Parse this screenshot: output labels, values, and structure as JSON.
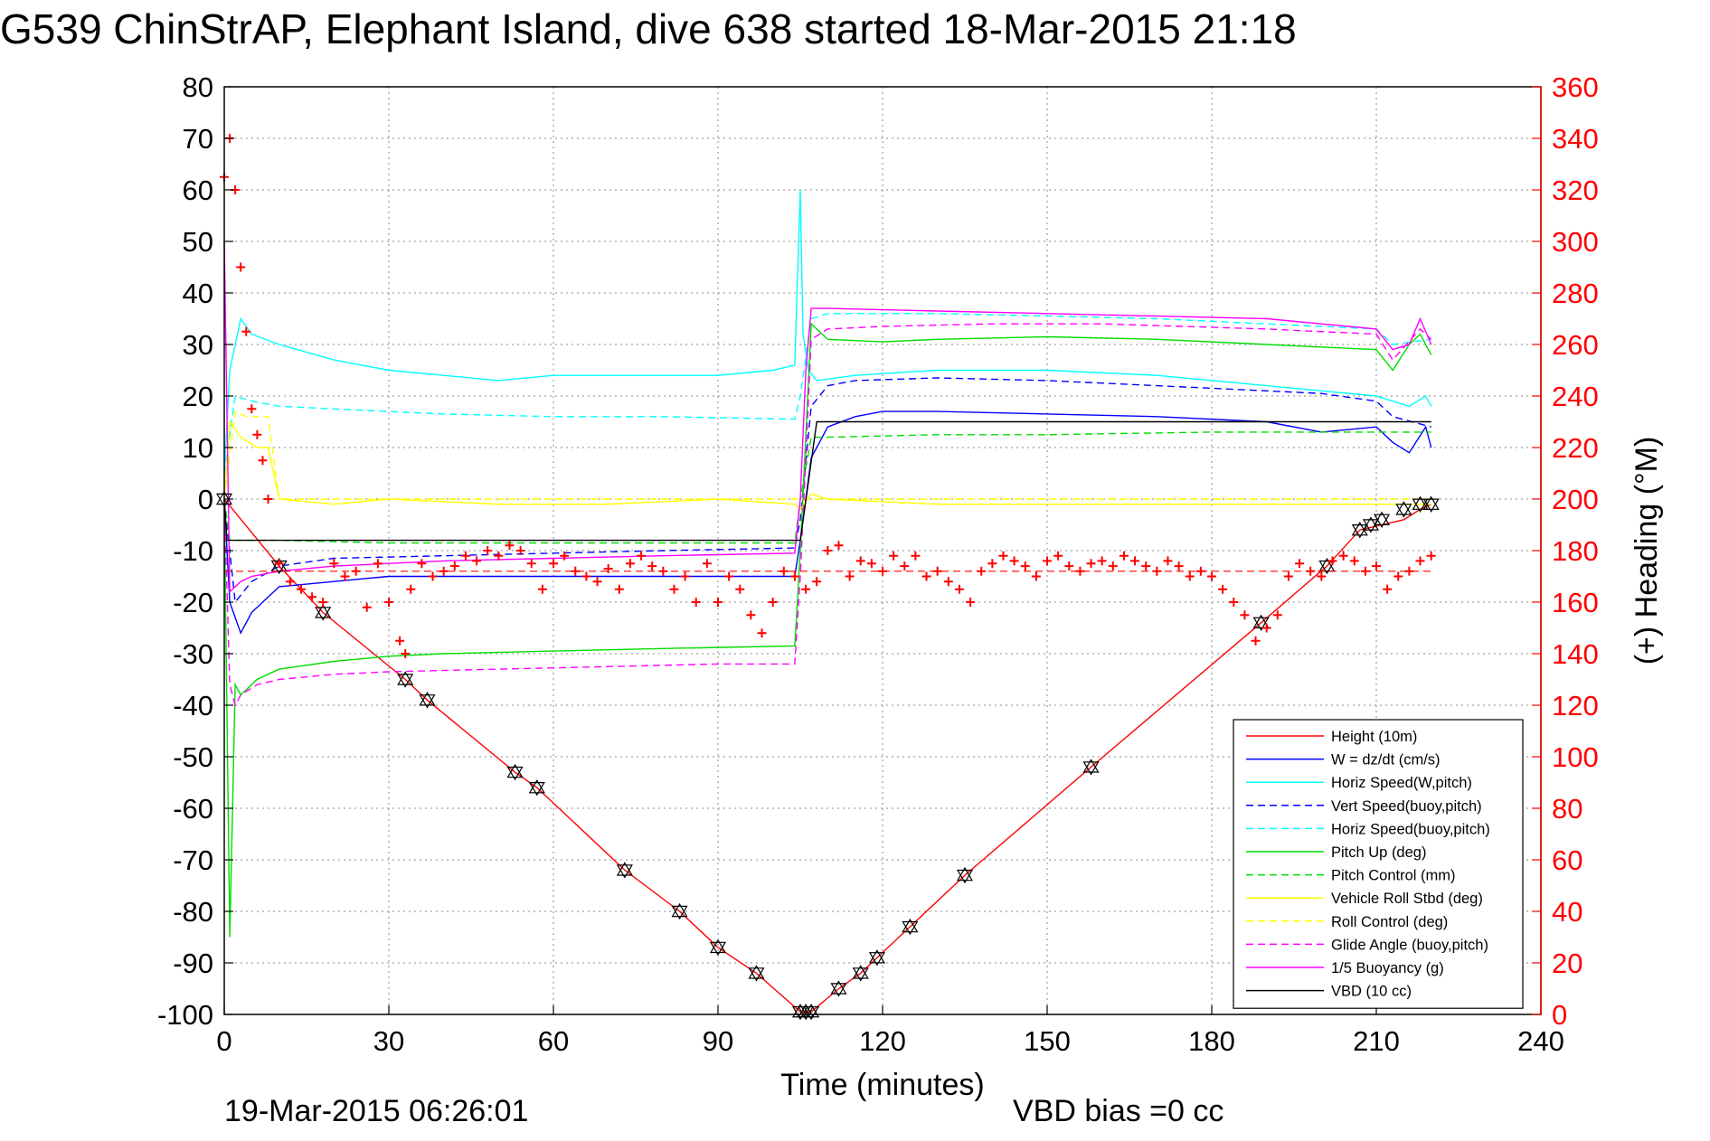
{
  "chart_data": {
    "type": "line",
    "title": "G539 ChinStrAP, Elephant Island, dive 638 started 18-Mar-2015 21:18",
    "xlabel": "Time (minutes)",
    "ylabel_right": "(+) Heading (°M)",
    "xlim": [
      0,
      240
    ],
    "ylim": [
      -100,
      80
    ],
    "ylim_right": [
      0,
      360
    ],
    "xticks": [
      "0",
      "30",
      "60",
      "90",
      "120",
      "150",
      "180",
      "210",
      "240"
    ],
    "yticks": [
      "80",
      "70",
      "60",
      "50",
      "40",
      "30",
      "20",
      "10",
      "0",
      "-10",
      "-20",
      "-30",
      "-40",
      "-50",
      "-60",
      "-70",
      "-80",
      "-90",
      "-100"
    ],
    "yticks_right": [
      "360",
      "340",
      "320",
      "300",
      "280",
      "260",
      "240",
      "220",
      "200",
      "180",
      "160",
      "140",
      "120",
      "100",
      "80",
      "60",
      "40",
      "20",
      "0"
    ],
    "grid": true,
    "legend_position": "bottom-right",
    "footer_left": "19-Mar-2015 06:26:01",
    "footer_right": "VBD bias =0 cc",
    "series": [
      {
        "name": "Height (10m)",
        "color": "#ff0000",
        "dash": "solid",
        "x": [
          0,
          10,
          18,
          33,
          37,
          53,
          57,
          73,
          83,
          90,
          97,
          105,
          107,
          112,
          116,
          119,
          125,
          135,
          158,
          189,
          201,
          207,
          215,
          218,
          220
        ],
        "y": [
          0,
          -13,
          -22,
          -35,
          -39,
          -53,
          -56,
          -72,
          -80,
          -87,
          -92,
          -99.5,
          -99.5,
          -95,
          -92,
          -89,
          -83,
          -73,
          -52,
          -24,
          -13,
          -6,
          -4,
          -2,
          -1
        ]
      },
      {
        "name": "W = dz/dt (cm/s)",
        "color": "#0000ff",
        "dash": "solid",
        "x": [
          0,
          1,
          3,
          5,
          10,
          20,
          30,
          50,
          70,
          90,
          104,
          105,
          107,
          110,
          115,
          120,
          130,
          150,
          170,
          190,
          200,
          210,
          213,
          216,
          219,
          220
        ],
        "y": [
          0,
          -20,
          -26,
          -22,
          -17,
          -16,
          -15,
          -15,
          -15,
          -15,
          -15,
          -8,
          8,
          14,
          16,
          17,
          17,
          16.5,
          16,
          15,
          13,
          14,
          11,
          9,
          14,
          10
        ]
      },
      {
        "name": "Horiz Speed(W,pitch)",
        "color": "#00ffff",
        "dash": "solid",
        "x": [
          0,
          1,
          3,
          5,
          10,
          20,
          30,
          40,
          50,
          60,
          70,
          80,
          90,
          100,
          104,
          105,
          105.5,
          106.5,
          108,
          115,
          130,
          150,
          170,
          190,
          200,
          210,
          213,
          216,
          219,
          220
        ],
        "y": [
          5,
          25,
          35,
          32,
          30,
          27,
          25,
          24,
          23,
          24,
          24,
          24,
          24,
          25,
          26,
          60,
          32,
          25,
          23,
          24,
          25,
          25,
          24,
          22,
          21,
          20,
          19,
          18,
          20,
          18
        ]
      },
      {
        "name": "Vert Speed(buoy,pitch)",
        "color": "#0000ff",
        "dash": "dashed",
        "x": [
          0,
          2,
          5,
          10,
          20,
          40,
          60,
          80,
          104,
          105,
          107,
          110,
          115,
          130,
          150,
          170,
          190,
          200,
          210,
          213,
          220
        ],
        "y": [
          0,
          -20,
          -16,
          -13,
          -11.5,
          -11,
          -10.5,
          -10,
          -9.5,
          -4,
          18,
          22,
          23,
          23.5,
          23,
          22,
          21,
          20.5,
          19,
          16,
          14
        ]
      },
      {
        "name": "Horiz Speed(buoy,pitch)",
        "color": "#00ffff",
        "dash": "dashed",
        "x": [
          0,
          2,
          5,
          10,
          20,
          40,
          60,
          80,
          104,
          105,
          107,
          110,
          130,
          150,
          170,
          190,
          210,
          213,
          220
        ],
        "y": [
          5,
          20,
          19,
          18,
          17.5,
          16.5,
          16,
          16,
          15.5,
          20,
          35,
          36,
          36,
          35.5,
          35,
          34,
          33,
          30,
          31
        ]
      },
      {
        "name": "Pitch Up (deg)",
        "color": "#00dd00",
        "dash": "solid",
        "x": [
          0,
          1,
          2,
          3,
          4,
          6,
          10,
          20,
          30,
          40,
          60,
          80,
          104,
          105,
          107,
          110,
          120,
          130,
          150,
          170,
          190,
          210,
          213,
          216,
          218,
          220
        ],
        "y": [
          0,
          -85,
          -36,
          -38,
          -37,
          -35,
          -33,
          -31.5,
          -30.5,
          -30,
          -29.5,
          -29,
          -28.5,
          -10,
          34,
          31,
          30.5,
          31,
          31.5,
          31,
          30,
          29,
          25,
          30,
          32,
          28
        ]
      },
      {
        "name": "Pitch Control (mm)",
        "color": "#00dd00",
        "dash": "dashed",
        "x": [
          0,
          1,
          3,
          10,
          30,
          60,
          90,
          104,
          105,
          107,
          110,
          130,
          150,
          180,
          210,
          220
        ],
        "y": [
          0,
          -8,
          -8,
          -8,
          -8.5,
          -8.5,
          -8.5,
          -8.5,
          0,
          12,
          12,
          12.5,
          12.5,
          13,
          13,
          13
        ]
      },
      {
        "name": "Vehicle Roll Stbd (deg)",
        "color": "#ffff00",
        "dash": "solid",
        "x": [
          0,
          1,
          3,
          6,
          8,
          10,
          20,
          30,
          50,
          70,
          90,
          104,
          105,
          107,
          110,
          130,
          150,
          180,
          200,
          210,
          220
        ],
        "y": [
          0,
          15,
          12,
          10,
          10,
          0,
          -1,
          0,
          -1,
          -1,
          0,
          -1,
          -2,
          1,
          0,
          -1,
          -1,
          -1,
          -1,
          -1,
          -1
        ]
      },
      {
        "name": "Roll Control (deg)",
        "color": "#ffff00",
        "dash": "dashed",
        "x": [
          0,
          2,
          4,
          6,
          8,
          10,
          20,
          40,
          60,
          80,
          100,
          104,
          105,
          107,
          110,
          130,
          150,
          180,
          210,
          220
        ],
        "y": [
          0,
          17,
          16,
          16,
          16,
          0,
          0,
          0,
          0,
          0,
          0,
          0,
          0,
          0,
          0,
          0,
          0,
          0,
          0,
          0
        ]
      },
      {
        "name": "Glide Angle (buoy,pitch)",
        "color": "#ff00ff",
        "dash": "dashed",
        "x": [
          0,
          1,
          2,
          3,
          6,
          10,
          20,
          30,
          50,
          70,
          90,
          104,
          105,
          107,
          110,
          120,
          140,
          160,
          190,
          210,
          213,
          218,
          220
        ],
        "y": [
          0,
          -36,
          -40,
          -38,
          -36,
          -35,
          -34,
          -33.5,
          -33,
          -32.5,
          -32,
          -32,
          -15,
          31,
          33,
          33.5,
          34,
          34,
          33,
          32,
          27,
          33,
          31
        ]
      },
      {
        "name": "1/5 Buoyancy (g)",
        "color": "#ff00ff",
        "dash": "solid",
        "x": [
          0,
          1,
          3,
          5,
          10,
          20,
          40,
          60,
          80,
          104,
          105,
          106,
          107,
          110,
          130,
          150,
          170,
          190,
          210,
          213,
          216,
          218,
          220
        ],
        "y": [
          50,
          -18,
          -16,
          -15,
          -14,
          -13,
          -12,
          -11.5,
          -11,
          -10.5,
          0,
          25,
          37,
          37,
          36.5,
          36,
          35.5,
          35,
          33,
          29,
          30,
          35,
          30
        ]
      },
      {
        "name": "VBD (10 cc)",
        "color": "#000000",
        "dash": "solid",
        "x": [
          0,
          0.5,
          2,
          104,
          105,
          108,
          220
        ],
        "y": [
          0,
          -8,
          -8,
          -8,
          -8,
          15,
          15
        ]
      }
    ],
    "heading_series": {
      "name": "(+) Heading (°M)",
      "color": "#ff0000",
      "marker": "+",
      "x": [
        0,
        1,
        2,
        3,
        4,
        5,
        6,
        7,
        8,
        10,
        12,
        14,
        16,
        18,
        20,
        22,
        24,
        26,
        28,
        30,
        32,
        33,
        34,
        36,
        38,
        40,
        42,
        44,
        46,
        48,
        50,
        52,
        54,
        56,
        58,
        60,
        62,
        64,
        66,
        68,
        70,
        72,
        74,
        76,
        78,
        80,
        82,
        84,
        86,
        88,
        90,
        92,
        94,
        96,
        98,
        100,
        102,
        104,
        106,
        108,
        110,
        112,
        114,
        116,
        118,
        120,
        122,
        124,
        126,
        128,
        130,
        132,
        134,
        136,
        138,
        140,
        142,
        144,
        146,
        148,
        150,
        152,
        154,
        156,
        158,
        160,
        162,
        164,
        166,
        168,
        170,
        172,
        174,
        176,
        178,
        180,
        182,
        184,
        186,
        188,
        190,
        192,
        194,
        196,
        198,
        200,
        202,
        204,
        206,
        208,
        210,
        212,
        214,
        216,
        218,
        220
      ],
      "y": [
        325,
        340,
        320,
        290,
        265,
        235,
        225,
        215,
        200,
        175,
        168,
        165,
        162,
        160,
        175,
        170,
        172,
        158,
        175,
        160,
        145,
        140,
        165,
        175,
        170,
        172,
        174,
        178,
        176,
        180,
        178,
        182,
        180,
        175,
        165,
        175,
        178,
        172,
        170,
        168,
        173,
        165,
        175,
        178,
        174,
        172,
        165,
        170,
        160,
        175,
        160,
        170,
        165,
        155,
        148,
        160,
        172,
        170,
        165,
        168,
        180,
        182,
        170,
        176,
        175,
        172,
        178,
        174,
        178,
        170,
        172,
        168,
        165,
        160,
        172,
        175,
        178,
        176,
        174,
        170,
        176,
        178,
        174,
        172,
        175,
        176,
        174,
        178,
        176,
        174,
        172,
        176,
        174,
        170,
        172,
        170,
        165,
        160,
        155,
        145,
        150,
        155,
        170,
        175,
        172,
        170,
        176,
        178,
        176,
        172,
        174,
        165,
        170,
        172,
        176,
        178
      ]
    },
    "heading_reference": {
      "value": 172,
      "color": "#ff0000",
      "dash": "dashed"
    },
    "marker_series": {
      "name": "Height markers",
      "color": "#000000",
      "marker": "triangle",
      "x": [
        0,
        10,
        18,
        33,
        37,
        53,
        57,
        73,
        83,
        90,
        97,
        105,
        106,
        107,
        112,
        116,
        119,
        125,
        135,
        158,
        189,
        201,
        207,
        209,
        211,
        215,
        218,
        220
      ],
      "y": [
        0,
        -13,
        -22,
        -35,
        -39,
        -53,
        -56,
        -72,
        -80,
        -87,
        -92,
        -99.5,
        -99.5,
        -99.5,
        -95,
        -92,
        -89,
        -83,
        -73,
        -52,
        -24,
        -13,
        -6,
        -5,
        -4,
        -2,
        -1,
        -1
      ]
    }
  }
}
